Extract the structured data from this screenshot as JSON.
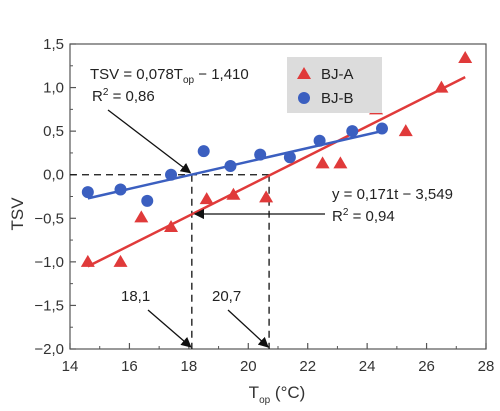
{
  "chart_data": {
    "type": "scatter",
    "xlabel": {
      "main": "T",
      "sub": "op",
      "unit": " (°C)"
    },
    "ylabel": "TSV",
    "xlim": [
      14,
      28
    ],
    "ylim": [
      -2.0,
      1.5
    ],
    "xticks": [
      14,
      16,
      18,
      20,
      22,
      24,
      26,
      28
    ],
    "xtick_labels": [
      "14",
      "16",
      "18",
      "20",
      "22",
      "24",
      "26",
      "28"
    ],
    "yticks": [
      -2.0,
      -1.5,
      -1.0,
      -0.5,
      0.0,
      0.5,
      1.0,
      1.5
    ],
    "ytick_labels": [
      "−2,0",
      "−1,5",
      "−1,0",
      "−0,5",
      "0,0",
      "0,5",
      "1,0",
      "1,5"
    ],
    "grid": false,
    "legend_position": "top-right",
    "series": [
      {
        "name": "BJ-A",
        "marker": "triangle",
        "color": "#e03a3a",
        "points": [
          [
            14.6,
            -1.0
          ],
          [
            15.7,
            -1.0
          ],
          [
            16.4,
            -0.49
          ],
          [
            17.4,
            -0.6
          ],
          [
            18.6,
            -0.28
          ],
          [
            19.5,
            -0.23
          ],
          [
            20.6,
            -0.26
          ],
          [
            22.5,
            0.13
          ],
          [
            23.1,
            0.13
          ],
          [
            24.3,
            0.75
          ],
          [
            25.3,
            0.5
          ],
          [
            26.5,
            1.0
          ],
          [
            27.3,
            1.34
          ]
        ],
        "fit": {
          "slope": 0.171,
          "intercept": -3.549,
          "x_range": [
            14.6,
            27.3
          ],
          "color": "#e03a3a"
        }
      },
      {
        "name": "BJ-B",
        "marker": "circle",
        "color": "#3b5fc0",
        "points": [
          [
            14.6,
            -0.2
          ],
          [
            15.7,
            -0.17
          ],
          [
            16.6,
            -0.3
          ],
          [
            17.4,
            0.0
          ],
          [
            18.5,
            0.27
          ],
          [
            19.4,
            0.1
          ],
          [
            20.4,
            0.23
          ],
          [
            21.4,
            0.2
          ],
          [
            22.4,
            0.39
          ],
          [
            23.5,
            0.5
          ],
          [
            24.5,
            0.53
          ]
        ],
        "fit": {
          "slope": 0.078,
          "intercept": -1.41,
          "x_range": [
            14.6,
            24.5
          ],
          "color": "#3b5fc0"
        }
      }
    ],
    "annotations": {
      "eq_b": {
        "pre": "TSV = 0,078T",
        "sub": "op",
        "post": " − 1,410"
      },
      "r2_b": {
        "pre": "R",
        "sup": "2",
        "post": " = 0,86"
      },
      "eq_a": "y = 0,171t − 3,549",
      "r2_a": {
        "pre": "R",
        "sup": "2",
        "post": " = 0,94"
      },
      "neutral_b": "18,1",
      "neutral_a": "20,7"
    },
    "reference_lines": {
      "zero_y": 0.0,
      "neutral_b_x": 18.1,
      "neutral_a_x": 20.7
    }
  }
}
